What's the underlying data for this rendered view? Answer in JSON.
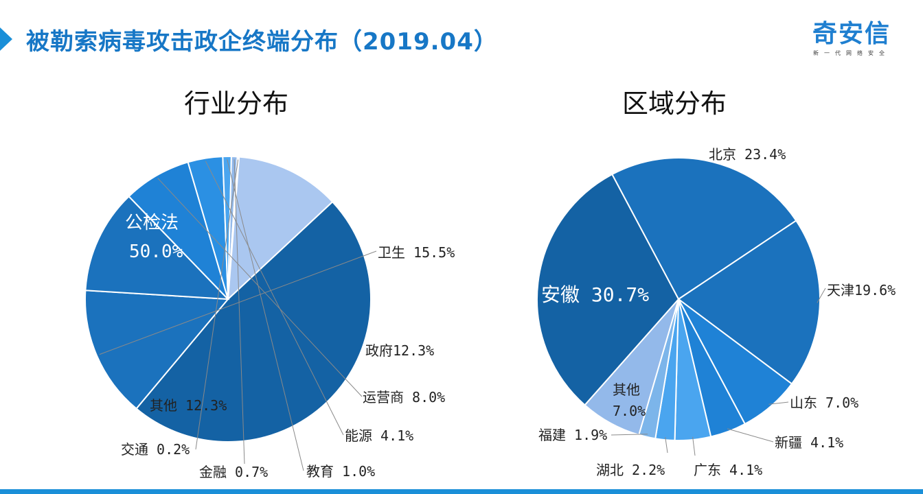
{
  "header": {
    "title": "被勒索病毒攻击政企终端分布（2019.04）",
    "logo_name": "奇安信",
    "logo_tagline": "新一代网络安全"
  },
  "colors": {
    "title": "#1777c6",
    "accent": "#1a8fd8",
    "slice_palette": [
      "#1462a4",
      "#1b72bd",
      "#1f82d6",
      "#2b90e3",
      "#4aa5ef",
      "#7cb5ea",
      "#93b9ea",
      "#aac7f0",
      "#b4caf5",
      "#c9dbf6"
    ]
  },
  "chart_data": [
    {
      "type": "pie",
      "title": "行业分布",
      "slices": [
        {
          "label": "公检法",
          "value": 50.0,
          "display": "50.0%"
        },
        {
          "label": "卫生",
          "value": 15.5,
          "display": "15.5%"
        },
        {
          "label": "政府",
          "value": 12.3,
          "display": "12.3%"
        },
        {
          "label": "运营商",
          "value": 8.0,
          "display": "8.0%"
        },
        {
          "label": "能源",
          "value": 4.1,
          "display": "4.1%"
        },
        {
          "label": "教育",
          "value": 1.0,
          "display": "1.0%"
        },
        {
          "label": "金融",
          "value": 0.7,
          "display": "0.7%"
        },
        {
          "label": "交通",
          "value": 0.2,
          "display": "0.2%"
        },
        {
          "label": "其他",
          "value": 12.3,
          "display": "12.3%"
        }
      ]
    },
    {
      "type": "pie",
      "title": "区域分布",
      "slices": [
        {
          "label": "北京",
          "value": 23.4,
          "display": "23.4%"
        },
        {
          "label": "天津",
          "value": 19.6,
          "display": "19.6%"
        },
        {
          "label": "山东",
          "value": 7.0,
          "display": "7.0%"
        },
        {
          "label": "新疆",
          "value": 4.1,
          "display": "4.1%"
        },
        {
          "label": "广东",
          "value": 4.1,
          "display": "4.1%"
        },
        {
          "label": "湖北",
          "value": 2.2,
          "display": "2.2%"
        },
        {
          "label": "福建",
          "value": 1.9,
          "display": "1.9%"
        },
        {
          "label": "其他",
          "value": 7.0,
          "display": "7.0%"
        },
        {
          "label": "安徽",
          "value": 30.7,
          "display": "30.7%"
        }
      ]
    }
  ]
}
